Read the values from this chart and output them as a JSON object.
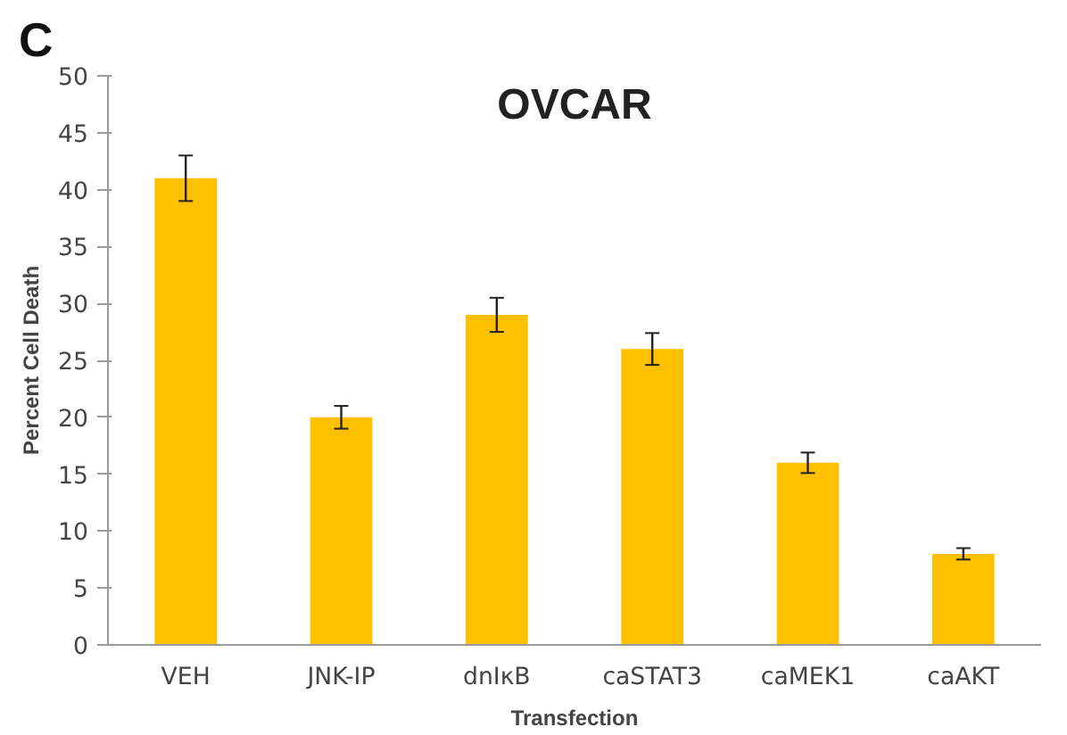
{
  "chart_data": {
    "type": "bar",
    "title": "OVCAR",
    "xlabel": "Transfection",
    "ylabel": "Percent Cell Death",
    "annotations": [
      "C"
    ],
    "categories": [
      "VEH",
      "JNK-IP",
      "dnIκB",
      "caSTAT3",
      "caMEK1",
      "caAKT"
    ],
    "values": [
      41,
      20,
      29,
      26,
      16,
      8
    ],
    "errors": [
      2,
      1,
      1.5,
      1.4,
      0.9,
      0.5
    ],
    "color": "#ffc000",
    "ylim": [
      0,
      50
    ],
    "yticks": [
      0,
      5,
      10,
      15,
      20,
      25,
      30,
      35,
      40,
      45,
      50
    ],
    "grid": false
  }
}
